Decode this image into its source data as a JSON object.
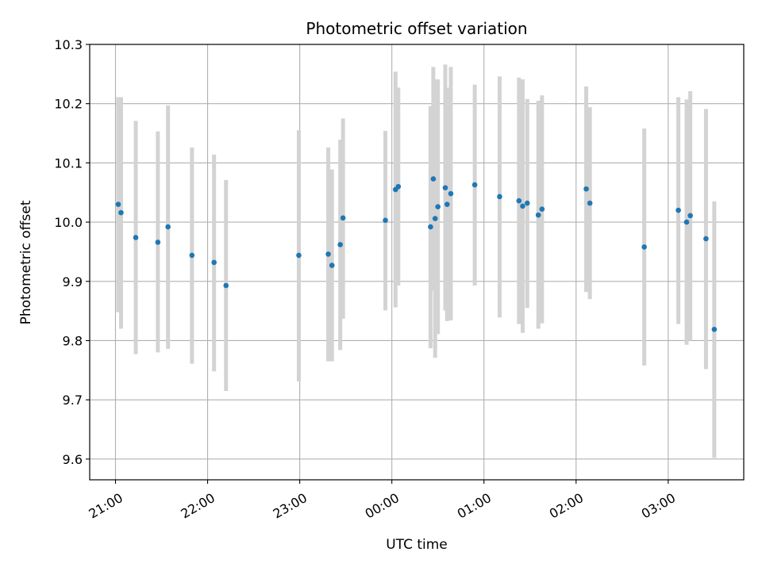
{
  "chart_data": {
    "type": "scatter",
    "title": "Photometric offset variation",
    "xlabel": "UTC time",
    "ylabel": "Photometric offset",
    "x_unit": "UTC time (hours; values >= 24 are after midnight)",
    "xlim": [
      20.72,
      27.82
    ],
    "ylim": [
      9.565,
      10.3
    ],
    "xticks": [
      {
        "value": 21,
        "label": "21:00"
      },
      {
        "value": 22,
        "label": "22:00"
      },
      {
        "value": 23,
        "label": "23:00"
      },
      {
        "value": 24,
        "label": "00:00"
      },
      {
        "value": 25,
        "label": "01:00"
      },
      {
        "value": 26,
        "label": "02:00"
      },
      {
        "value": 27,
        "label": "03:00"
      }
    ],
    "yticks": [
      {
        "value": 9.6,
        "label": "9.6"
      },
      {
        "value": 9.7,
        "label": "9.7"
      },
      {
        "value": 9.8,
        "label": "9.8"
      },
      {
        "value": 9.9,
        "label": "9.9"
      },
      {
        "value": 10.0,
        "label": "10.0"
      },
      {
        "value": 10.1,
        "label": "10.1"
      },
      {
        "value": 10.2,
        "label": "10.2"
      },
      {
        "value": 10.3,
        "label": "10.3"
      }
    ],
    "grid": true,
    "colors": {
      "points": "#1f77b4",
      "errorbars": "#d3d3d3",
      "grid": "#b0b0b0"
    },
    "points": [
      {
        "x": 21.03,
        "y": 10.03,
        "err_low": 9.848,
        "err_high": 10.211
      },
      {
        "x": 21.06,
        "y": 10.016,
        "err_low": 9.82,
        "err_high": 10.211
      },
      {
        "x": 21.22,
        "y": 9.974,
        "err_low": 9.777,
        "err_high": 10.171
      },
      {
        "x": 21.46,
        "y": 9.966,
        "err_low": 9.78,
        "err_high": 10.153
      },
      {
        "x": 21.57,
        "y": 9.992,
        "err_low": 9.786,
        "err_high": 10.197
      },
      {
        "x": 21.83,
        "y": 9.944,
        "err_low": 9.761,
        "err_high": 10.126
      },
      {
        "x": 22.07,
        "y": 9.932,
        "err_low": 9.748,
        "err_high": 10.114
      },
      {
        "x": 22.2,
        "y": 9.893,
        "err_low": 9.715,
        "err_high": 10.071
      },
      {
        "x": 22.99,
        "y": 9.944,
        "err_low": 9.731,
        "err_high": 10.155
      },
      {
        "x": 23.31,
        "y": 9.946,
        "err_low": 9.765,
        "err_high": 10.126
      },
      {
        "x": 23.35,
        "y": 9.927,
        "err_low": 9.765,
        "err_high": 10.089
      },
      {
        "x": 23.44,
        "y": 9.962,
        "err_low": 9.784,
        "err_high": 10.139
      },
      {
        "x": 23.47,
        "y": 10.007,
        "err_low": 9.837,
        "err_high": 10.175
      },
      {
        "x": 23.93,
        "y": 10.003,
        "err_low": 9.851,
        "err_high": 10.154
      },
      {
        "x": 24.04,
        "y": 10.055,
        "err_low": 9.856,
        "err_high": 10.254
      },
      {
        "x": 24.07,
        "y": 10.06,
        "err_low": 9.893,
        "err_high": 10.227
      },
      {
        "x": 24.42,
        "y": 9.992,
        "err_low": 9.787,
        "err_high": 10.196
      },
      {
        "x": 24.45,
        "y": 10.073,
        "err_low": 9.884,
        "err_high": 10.262
      },
      {
        "x": 24.47,
        "y": 10.006,
        "err_low": 9.771,
        "err_high": 10.241
      },
      {
        "x": 24.5,
        "y": 10.026,
        "err_low": 9.811,
        "err_high": 10.241
      },
      {
        "x": 24.58,
        "y": 10.058,
        "err_low": 9.851,
        "err_high": 10.266
      },
      {
        "x": 24.6,
        "y": 10.03,
        "err_low": 9.833,
        "err_high": 10.227
      },
      {
        "x": 24.64,
        "y": 10.048,
        "err_low": 9.834,
        "err_high": 10.262
      },
      {
        "x": 24.9,
        "y": 10.063,
        "err_low": 9.893,
        "err_high": 10.232
      },
      {
        "x": 25.17,
        "y": 10.043,
        "err_low": 9.839,
        "err_high": 10.246
      },
      {
        "x": 25.38,
        "y": 10.036,
        "err_low": 9.828,
        "err_high": 10.244
      },
      {
        "x": 25.42,
        "y": 10.027,
        "err_low": 9.813,
        "err_high": 10.241
      },
      {
        "x": 25.47,
        "y": 10.032,
        "err_low": 9.855,
        "err_high": 10.208
      },
      {
        "x": 25.59,
        "y": 10.012,
        "err_low": 9.82,
        "err_high": 10.205
      },
      {
        "x": 25.63,
        "y": 10.022,
        "err_low": 9.829,
        "err_high": 10.214
      },
      {
        "x": 26.11,
        "y": 10.056,
        "err_low": 9.882,
        "err_high": 10.229
      },
      {
        "x": 26.15,
        "y": 10.032,
        "err_low": 9.87,
        "err_high": 10.194
      },
      {
        "x": 26.74,
        "y": 9.958,
        "err_low": 9.758,
        "err_high": 10.158
      },
      {
        "x": 27.11,
        "y": 10.02,
        "err_low": 9.828,
        "err_high": 10.211
      },
      {
        "x": 27.2,
        "y": 10.0,
        "err_low": 9.793,
        "err_high": 10.207
      },
      {
        "x": 27.24,
        "y": 10.011,
        "err_low": 9.8,
        "err_high": 10.221
      },
      {
        "x": 27.41,
        "y": 9.972,
        "err_low": 9.752,
        "err_high": 10.191
      },
      {
        "x": 27.5,
        "y": 9.819,
        "err_low": 9.602,
        "err_high": 10.035
      }
    ]
  }
}
